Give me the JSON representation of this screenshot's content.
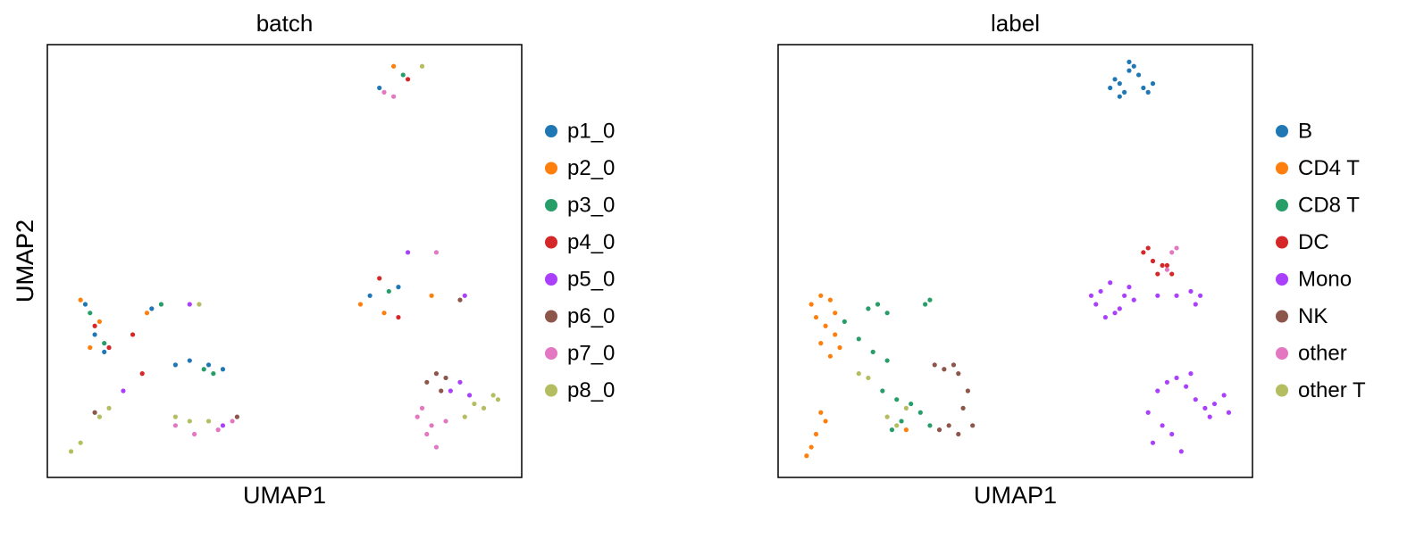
{
  "chart_data": [
    {
      "type": "scatter",
      "title": "batch",
      "xlabel": "UMAP1",
      "ylabel": "UMAP2",
      "xlim": [
        0,
        100
      ],
      "ylim": [
        0,
        100
      ],
      "series": [
        {
          "name": "p1_0",
          "color": "#1f77b4",
          "x": [
            8,
            10,
            12,
            22,
            27,
            30,
            34,
            37,
            70,
            74,
            68
          ],
          "values": [
            40,
            33,
            29,
            39,
            26,
            27,
            26,
            25,
            90,
            44,
            42
          ]
        },
        {
          "name": "p2_0",
          "color": "#ff7f0e",
          "x": [
            7,
            11,
            9,
            21,
            73,
            66,
            71,
            81
          ],
          "values": [
            41,
            36,
            30,
            38,
            95,
            40,
            38,
            42
          ]
        },
        {
          "name": "p3_0",
          "color": "#279e68",
          "x": [
            9,
            12,
            24,
            33,
            35,
            75,
            72
          ],
          "values": [
            38,
            31,
            40,
            25,
            24,
            93,
            43
          ]
        },
        {
          "name": "p4_0",
          "color": "#d62728",
          "x": [
            10,
            13,
            18,
            20,
            76,
            70,
            74
          ],
          "values": [
            35,
            30,
            33,
            24,
            92,
            46,
            37
          ]
        },
        {
          "name": "p5_0",
          "color": "#aa40fc",
          "x": [
            16,
            30,
            76,
            88,
            85,
            87,
            89,
            37
          ],
          "values": [
            20,
            40,
            52,
            42,
            20,
            22,
            19,
            12
          ]
        },
        {
          "name": "p6_0",
          "color": "#8c564b",
          "x": [
            84,
            80,
            82,
            83,
            10,
            40,
            87
          ],
          "values": [
            23,
            22,
            24,
            20,
            15,
            14,
            41
          ]
        },
        {
          "name": "p7_0",
          "color": "#e377c2",
          "x": [
            71,
            73,
            27,
            31,
            36,
            39,
            78,
            80,
            82,
            81,
            84,
            82,
            79
          ],
          "values": [
            89,
            88,
            12,
            10,
            11,
            13,
            14,
            10,
            7,
            12,
            13,
            52,
            16
          ]
        },
        {
          "name": "p8_0",
          "color": "#b5bd61",
          "x": [
            5,
            7,
            11,
            13,
            27,
            30,
            34,
            88,
            90,
            92,
            94,
            95,
            32,
            79
          ],
          "values": [
            6,
            8,
            14,
            16,
            14,
            13,
            13,
            14,
            17,
            16,
            19,
            18,
            40,
            95
          ]
        }
      ]
    },
    {
      "type": "scatter",
      "title": "label",
      "xlabel": "UMAP1",
      "ylabel": "UMAP2",
      "xlim": [
        0,
        100
      ],
      "ylim": [
        0,
        100
      ],
      "series": [
        {
          "name": "B",
          "color": "#1f77b4",
          "x": [
            70,
            72,
            74,
            75,
            73,
            71,
            77,
            79,
            76,
            72,
            74,
            78
          ],
          "values": [
            90,
            91,
            94,
            95,
            89,
            92,
            90,
            91,
            93,
            88,
            96,
            89
          ]
        },
        {
          "name": "CD4 T",
          "color": "#ff7f0e",
          "x": [
            7,
            9,
            11,
            8,
            10,
            12,
            13,
            9,
            11,
            12,
            6,
            7,
            8,
            10,
            9,
            27
          ],
          "values": [
            40,
            42,
            41,
            37,
            35,
            33,
            30,
            31,
            28,
            38,
            5,
            7,
            10,
            13,
            15,
            11
          ]
        },
        {
          "name": "CD8 T",
          "color": "#279e68",
          "x": [
            19,
            21,
            23,
            31,
            32,
            14,
            17,
            20,
            23,
            22,
            25,
            28,
            26,
            30,
            32,
            24
          ],
          "values": [
            39,
            40,
            38,
            40,
            41,
            36,
            32,
            29,
            27,
            20,
            18,
            17,
            13,
            15,
            12,
            11
          ]
        },
        {
          "name": "DC",
          "color": "#d62728",
          "x": [
            77,
            78,
            79,
            81,
            83,
            80,
            82
          ],
          "values": [
            52,
            53,
            50,
            49,
            47,
            47,
            49
          ]
        },
        {
          "name": "Mono",
          "color": "#aa40fc",
          "x": [
            67,
            68,
            70,
            71,
            73,
            75,
            69,
            72,
            74,
            66,
            80,
            84,
            87,
            88,
            89,
            78,
            80,
            82,
            84,
            86,
            88,
            90,
            92,
            94,
            95,
            83,
            85,
            81,
            87,
            91,
            79
          ],
          "values": [
            40,
            43,
            45,
            38,
            42,
            41,
            37,
            39,
            44,
            42,
            42,
            42,
            43,
            40,
            42,
            15,
            20,
            22,
            23,
            21,
            18,
            16,
            17,
            19,
            15,
            10,
            6,
            12,
            24,
            14,
            8
          ]
        },
        {
          "name": "NK",
          "color": "#8c564b",
          "x": [
            35,
            37,
            38,
            40,
            39,
            36,
            38,
            41,
            34,
            33
          ],
          "values": [
            25,
            26,
            24,
            20,
            16,
            12,
            10,
            12,
            11,
            26
          ]
        },
        {
          "name": "other",
          "color": "#e377c2",
          "x": [
            83,
            84,
            82
          ],
          "values": [
            52,
            53,
            48
          ]
        },
        {
          "name": "other T",
          "color": "#b5bd61",
          "x": [
            17,
            19,
            23,
            25,
            27
          ],
          "values": [
            24,
            23,
            14,
            12,
            16
          ]
        }
      ]
    }
  ]
}
